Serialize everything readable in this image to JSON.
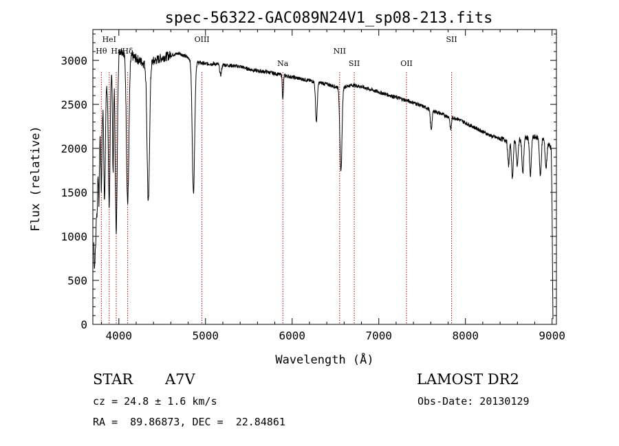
{
  "chart_data": {
    "type": "line",
    "title": "spec-56322-GAC089N24V1_sp08-213.fits",
    "xlabel": "Wavelength (Å)",
    "ylabel": "Flux (relative)",
    "xlim": [
      3700,
      9050
    ],
    "ylim": [
      0,
      3350
    ],
    "xticks": [
      4000,
      5000,
      6000,
      7000,
      8000,
      9000
    ],
    "yticks": [
      0,
      500,
      1000,
      1500,
      2000,
      2500,
      3000
    ],
    "grid": false,
    "continuum": [
      [
        3710,
        1300
      ],
      [
        3750,
        2000
      ],
      [
        3800,
        2450
      ],
      [
        3850,
        2650
      ],
      [
        3900,
        2850
      ],
      [
        3950,
        3050
      ],
      [
        4000,
        3120
      ],
      [
        4100,
        3080
      ],
      [
        4200,
        3020
      ],
      [
        4300,
        2960
      ],
      [
        4400,
        2990
      ],
      [
        4500,
        3030
      ],
      [
        4600,
        3060
      ],
      [
        4700,
        3080
      ],
      [
        4800,
        3030
      ],
      [
        4900,
        2980
      ],
      [
        5000,
        2960
      ],
      [
        5100,
        2960
      ],
      [
        5200,
        2950
      ],
      [
        5300,
        2940
      ],
      [
        5400,
        2930
      ],
      [
        5500,
        2900
      ],
      [
        5600,
        2880
      ],
      [
        5700,
        2870
      ],
      [
        5800,
        2850
      ],
      [
        5900,
        2830
      ],
      [
        6000,
        2810
      ],
      [
        6100,
        2790
      ],
      [
        6200,
        2770
      ],
      [
        6300,
        2750
      ],
      [
        6400,
        2730
      ],
      [
        6500,
        2700
      ],
      [
        6600,
        2700
      ],
      [
        6700,
        2720
      ],
      [
        6800,
        2700
      ],
      [
        6900,
        2670
      ],
      [
        7000,
        2640
      ],
      [
        7100,
        2610
      ],
      [
        7200,
        2580
      ],
      [
        7300,
        2550
      ],
      [
        7400,
        2520
      ],
      [
        7500,
        2480
      ],
      [
        7600,
        2440
      ],
      [
        7700,
        2400
      ],
      [
        7800,
        2360
      ],
      [
        7900,
        2340
      ],
      [
        8000,
        2290
      ],
      [
        8100,
        2240
      ],
      [
        8200,
        2190
      ],
      [
        8300,
        2140
      ],
      [
        8400,
        2110
      ],
      [
        8500,
        2090
      ],
      [
        8600,
        2100
      ],
      [
        8700,
        2120
      ],
      [
        8800,
        2130
      ],
      [
        8900,
        2110
      ],
      [
        8950,
        2060
      ],
      [
        8990,
        2000
      ],
      [
        9000,
        1300
      ],
      [
        9010,
        60
      ]
    ],
    "absorption_features": [
      {
        "center": 3720,
        "depth": 800,
        "width": 8
      },
      {
        "center": 3735,
        "depth": 600,
        "width": 6
      },
      {
        "center": 3750,
        "depth": 700,
        "width": 6
      },
      {
        "center": 3770,
        "depth": 800,
        "width": 6
      },
      {
        "center": 3798,
        "depth": 900,
        "width": 7
      },
      {
        "center": 3835,
        "depth": 1200,
        "width": 8
      },
      {
        "center": 3889,
        "depth": 1450,
        "width": 10
      },
      {
        "center": 3933,
        "depth": 1250,
        "width": 6
      },
      {
        "center": 3970,
        "depth": 2000,
        "width": 12
      },
      {
        "center": 4102,
        "depth": 1700,
        "width": 14
      },
      {
        "center": 4340,
        "depth": 1600,
        "width": 14
      },
      {
        "center": 4861,
        "depth": 1500,
        "width": 14
      },
      {
        "center": 5175,
        "depth": 120,
        "width": 10
      },
      {
        "center": 5893,
        "depth": 280,
        "width": 6
      },
      {
        "center": 6280,
        "depth": 450,
        "width": 10
      },
      {
        "center": 6563,
        "depth": 970,
        "width": 12
      },
      {
        "center": 7605,
        "depth": 220,
        "width": 10
      },
      {
        "center": 7830,
        "depth": 140,
        "width": 8
      },
      {
        "center": 8498,
        "depth": 280,
        "width": 10
      },
      {
        "center": 8542,
        "depth": 420,
        "width": 10
      },
      {
        "center": 8598,
        "depth": 300,
        "width": 10
      },
      {
        "center": 8662,
        "depth": 400,
        "width": 10
      },
      {
        "center": 8750,
        "depth": 440,
        "width": 10
      },
      {
        "center": 8865,
        "depth": 440,
        "width": 10
      },
      {
        "center": 8930,
        "depth": 300,
        "width": 10
      }
    ],
    "line_markers": [
      {
        "label": "Hθ",
        "wavelength": 3798,
        "row": 2
      },
      {
        "label": "HeI",
        "wavelength": 3889,
        "row": 1
      },
      {
        "label": "Hε",
        "wavelength": 3970,
        "row": 2
      },
      {
        "label": "Hδ",
        "wavelength": 4102,
        "row": 2
      },
      {
        "label": "OIII",
        "wavelength": 4959,
        "row": 1
      },
      {
        "label": "Na",
        "wavelength": 5893,
        "row": 3
      },
      {
        "label": "NII",
        "wavelength": 6548,
        "row": 2
      },
      {
        "label": "SII",
        "wavelength": 6717,
        "row": 3
      },
      {
        "label": "OII",
        "wavelength": 7320,
        "row": 3
      },
      {
        "label": "SII",
        "wavelength": 7840,
        "row": 1
      }
    ]
  },
  "info": {
    "class": "STAR",
    "subclass": "A7V",
    "survey": "LAMOST DR2",
    "cz": "cz = 24.8 ± 1.6 km/s",
    "obsdate": "Obs-Date: 20130129",
    "coords": "RA =  89.86873, DEC =  22.84861"
  }
}
